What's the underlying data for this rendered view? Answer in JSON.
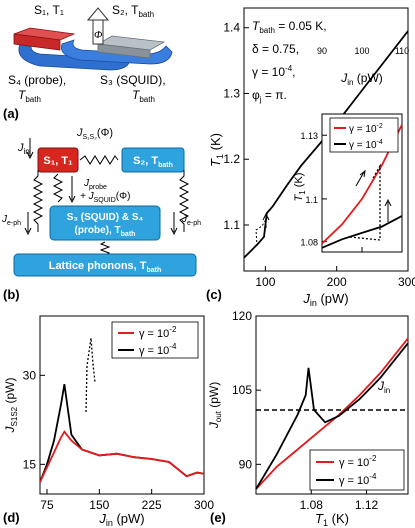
{
  "panels": {
    "a": "(a)",
    "b": "(b)",
    "c": "(c)",
    "d": "(d)",
    "e": "(e)"
  },
  "schematic": {
    "s1_label": "S₁, T₁",
    "s2_label": "S₂, T",
    "s2_sub": "bath",
    "s4_label": "S₄ (probe),",
    "s4_t": "T",
    "s4_sub": "bath",
    "s3_label": "S₃ (SQUID),",
    "s3_t": "T",
    "s3_sub": "bath",
    "phi_symbol": "Φ"
  },
  "diagram": {
    "j_in": "J",
    "j_in_sub": "in",
    "j_s1s2": "J",
    "j_s1s2_sub": "S₁S₂",
    "j_s1s2_arg": "(Φ)",
    "box_s1": "S₁, T₁",
    "box_s2": "S₂, T",
    "box_s2_sub": "bath",
    "j_probe": "J",
    "j_probe_sub": "probe",
    "j_squid_prefix": "+ J",
    "j_squid_sub": "SQUID",
    "j_squid_arg": "(Φ)",
    "j_eph_left": "J",
    "j_eph_left_sub": "e-ph",
    "j_eph_right": "J",
    "j_eph_right_sub": "e-ph",
    "box_s3s4_line1": "S₃ (SQUID) & S₄",
    "box_s3s4_line2": "(probe), T",
    "box_s3s4_sub": "bath",
    "box_lattice": "Lattice phonons, T",
    "box_lattice_sub": "bath",
    "colors": {
      "s1_fill": "#d7261e",
      "box_fill": "#2ea3de",
      "box_stroke": "#0a6aa8"
    }
  },
  "params": {
    "line1": "T",
    "line1_sub": "bath",
    "line1_val": " = 0.05 K,",
    "line2": "δ = 0.75,",
    "line3": "γ = 10",
    "line3_exp": "-4",
    "line3_end": ",",
    "line4": "φ",
    "line4_sub": "j",
    "line4_val": " = π."
  },
  "chart_data": [
    {
      "id": "c-main",
      "type": "line",
      "xlabel": "J_in (pW)",
      "ylabel": "T_1 (K)",
      "xlim": [
        70,
        300
      ],
      "ylim": [
        1.03,
        1.43
      ],
      "xticks": [
        100,
        200,
        300
      ],
      "yticks": [
        1.1,
        1.2,
        1.3,
        1.4
      ],
      "series": [
        {
          "x": [
            70,
            90,
            98,
            102,
            110,
            130,
            150,
            175,
            200,
            225,
            250,
            275,
            300
          ],
          "y": [
            1.05,
            1.072,
            1.082,
            1.118,
            1.128,
            1.16,
            1.19,
            1.222,
            1.255,
            1.29,
            1.325,
            1.36,
            1.395
          ]
        }
      ]
    },
    {
      "id": "c-inset",
      "type": "line",
      "xlabel": "J_in (pW)",
      "ylabel": "T_1 (K)",
      "xlim": [
        90,
        110
      ],
      "ylim": [
        1.075,
        1.14
      ],
      "xticks": [
        90,
        100,
        110
      ],
      "yticks": [
        1.08,
        1.1,
        1.13
      ],
      "series": [
        {
          "name": "γ = 10⁻²",
          "color": "#e41a1c",
          "x": [
            90,
            95,
            100,
            105,
            110
          ],
          "y": [
            1.079,
            1.088,
            1.1,
            1.116,
            1.135
          ]
        },
        {
          "name": "γ = 10⁻⁴",
          "color": "#000000",
          "x": [
            90,
            95,
            100,
            105,
            110
          ],
          "y": [
            1.077,
            1.081,
            1.084,
            1.087,
            1.092
          ]
        }
      ]
    },
    {
      "id": "d",
      "type": "line",
      "xlabel": "J_in (pW)",
      "ylabel": "J_S1S2 (pW)",
      "xlim": [
        65,
        300
      ],
      "ylim": [
        10,
        40
      ],
      "xticks": [
        75,
        150,
        225,
        300
      ],
      "yticks": [
        15,
        30
      ],
      "series": [
        {
          "name": "γ = 10⁻²",
          "color": "#e41a1c",
          "x": [
            65,
            75,
            85,
            95,
            100,
            110,
            125,
            150,
            175,
            200,
            225,
            250,
            275,
            290,
            300
          ],
          "y": [
            12,
            14.5,
            17,
            19.5,
            20.5,
            19,
            17.5,
            16.5,
            16.8,
            16.2,
            15.9,
            15.4,
            13,
            13.6,
            13.4
          ]
        },
        {
          "name": "γ = 10⁻⁴",
          "color": "#000000",
          "x": [
            65,
            75,
            85,
            95,
            100,
            110,
            125,
            150,
            175,
            200,
            225,
            250,
            275,
            290,
            300
          ],
          "y": [
            12,
            15,
            19,
            25,
            28.5,
            20,
            17.5,
            16.5,
            16.8,
            16.2,
            15.9,
            15.4,
            13,
            13.6,
            13.4
          ]
        }
      ]
    },
    {
      "id": "e",
      "type": "line",
      "xlabel": "T_1 (K)",
      "ylabel": "J_out (pW)",
      "xlim": [
        1.04,
        1.15
      ],
      "ylim": [
        84,
        120
      ],
      "xticks": [
        1.08,
        1.12
      ],
      "yticks": [
        90,
        105,
        120
      ],
      "hline": {
        "y": 101,
        "label": "J_in"
      },
      "series": [
        {
          "name": "γ = 10⁻²",
          "color": "#e41a1c",
          "x": [
            1.04,
            1.055,
            1.07,
            1.085,
            1.1,
            1.115,
            1.13,
            1.15
          ],
          "y": [
            85,
            89.5,
            93,
            96.5,
            100,
            104,
            108.5,
            115.5
          ]
        },
        {
          "name": "γ = 10⁻⁴",
          "color": "#000000",
          "x": [
            1.04,
            1.055,
            1.07,
            1.076,
            1.078,
            1.082,
            1.09,
            1.1,
            1.115,
            1.13,
            1.15
          ],
          "y": [
            85,
            92,
            100,
            104,
            109.5,
            101,
            98.5,
            99.8,
            103.2,
            107.5,
            114.5
          ]
        }
      ]
    }
  ],
  "axis_text": {
    "c_xlabel_j": "J",
    "c_xlabel_sub": "in",
    "c_xlabel_unit": " (pW)",
    "c_ylabel_t": "T",
    "c_ylabel_sub": "1",
    "c_ylabel_unit": " (K)",
    "inset_xlabel_j": "J",
    "inset_xlabel_sub": "in",
    "inset_xlabel_unit": " (pW)",
    "inset_ylabel_t": "T",
    "inset_ylabel_sub": "1",
    "inset_ylabel_unit": " (K)",
    "d_ylabel_j": "J",
    "d_ylabel_sub": "S1S2",
    "d_ylabel_unit": " (pW)",
    "d_xlabel_j": "J",
    "d_xlabel_sub": "in",
    "d_xlabel_unit": " (pW)",
    "e_ylabel_j": "J",
    "e_ylabel_sub": "out",
    "e_ylabel_unit": " (pW)",
    "e_xlabel_t": "T",
    "e_xlabel_sub": "1",
    "e_xlabel_unit": " (K)",
    "e_jin": "J",
    "e_jin_sub": "in"
  },
  "legend": {
    "red": "γ = 10",
    "red_exp": "-2",
    "black": "γ = 10",
    "black_exp": "-4"
  }
}
